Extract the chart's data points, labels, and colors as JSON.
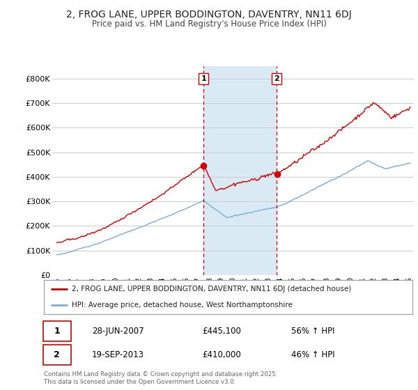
{
  "title_line1": "2, FROG LANE, UPPER BODDINGTON, DAVENTRY, NN11 6DJ",
  "title_line2": "Price paid vs. HM Land Registry's House Price Index (HPI)",
  "legend_label_red": "2, FROG LANE, UPPER BODDINGTON, DAVENTRY, NN11 6DJ (detached house)",
  "legend_label_blue": "HPI: Average price, detached house, West Northamptonshire",
  "annotation1_date": "28-JUN-2007",
  "annotation1_price": "£445,100",
  "annotation1_hpi": "56% ↑ HPI",
  "annotation2_date": "19-SEP-2013",
  "annotation2_price": "£410,000",
  "annotation2_hpi": "46% ↑ HPI",
  "footer": "Contains HM Land Registry data © Crown copyright and database right 2025.\nThis data is licensed under the Open Government Licence v3.0.",
  "red_color": "#cc0000",
  "blue_color": "#7aaed6",
  "shaded_color": "#daeaf5",
  "background_color": "#ffffff",
  "grid_color": "#cccccc",
  "ylim": [
    0,
    850000
  ],
  "yticks": [
    0,
    100000,
    200000,
    300000,
    400000,
    500000,
    600000,
    700000,
    800000
  ],
  "sale1_x": 2007.49,
  "sale1_y": 445100,
  "sale2_x": 2013.72,
  "sale2_y": 410000,
  "xlim_left": 1994.6,
  "xlim_right": 2025.4
}
